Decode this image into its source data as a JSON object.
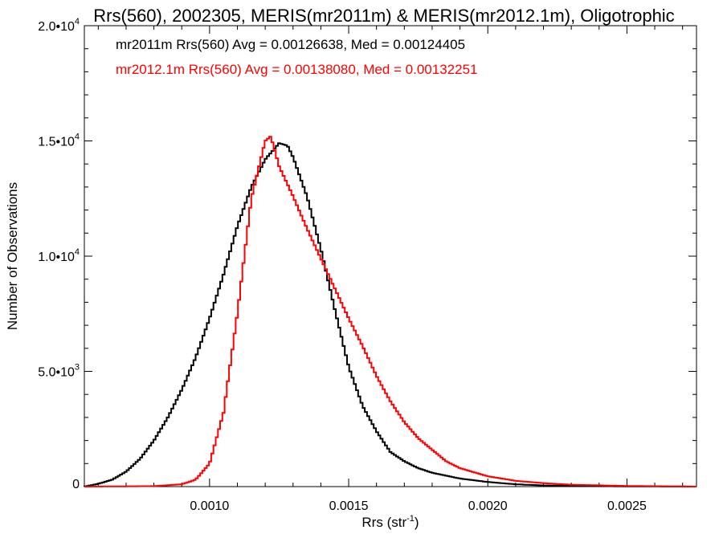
{
  "chart_data": {
    "type": "line",
    "title": "Rrs(560), 2002305, MERIS(mr2011m) & MERIS(mr2012.1m), Oligotrophic",
    "xlabel": "Rrs (str",
    "xlabel_sup": "-1",
    "xlabel_close": ")",
    "ylabel": "Number of Observations",
    "xlim": [
      0.00055,
      0.00275
    ],
    "ylim": [
      0,
      20000
    ],
    "x_ticks": [
      {
        "value": 0.001,
        "label": "0.0010"
      },
      {
        "value": 0.0015,
        "label": "0.0015"
      },
      {
        "value": 0.002,
        "label": "0.0020"
      },
      {
        "value": 0.0025,
        "label": "0.0025"
      }
    ],
    "y_ticks": [
      {
        "value": 0,
        "base": "0",
        "sup": ""
      },
      {
        "value": 5000,
        "base": "5.0•10",
        "sup": "3"
      },
      {
        "value": 10000,
        "base": "1.0•10",
        "sup": "4"
      },
      {
        "value": 15000,
        "base": "1.5•10",
        "sup": "4"
      },
      {
        "value": 20000,
        "base": "2.0•10",
        "sup": "4"
      }
    ],
    "annotations": [
      {
        "text": "mr2011m Rrs(560) Avg = 0.00126638, Med = 0.00124405",
        "color": "#000000"
      },
      {
        "text": "mr2012.1m Rrs(560) Avg = 0.00138080, Med = 0.00132251",
        "color": "#ff0000"
      }
    ],
    "series": [
      {
        "name": "mr2011m",
        "color": "#000000",
        "style": "step",
        "points": [
          [
            0.00055,
            0
          ],
          [
            0.0006,
            120
          ],
          [
            0.00065,
            300
          ],
          [
            0.0007,
            650
          ],
          [
            0.00075,
            1200
          ],
          [
            0.0008,
            2000
          ],
          [
            0.00085,
            3000
          ],
          [
            0.0009,
            4200
          ],
          [
            0.00095,
            5600
          ],
          [
            0.001,
            7300
          ],
          [
            0.00105,
            9200
          ],
          [
            0.0011,
            11300
          ],
          [
            0.00115,
            13000
          ],
          [
            0.0012,
            14200
          ],
          [
            0.00125,
            14900
          ],
          [
            0.00128,
            14800
          ],
          [
            0.0013,
            14300
          ],
          [
            0.00135,
            12600
          ],
          [
            0.0014,
            10300
          ],
          [
            0.00145,
            7700
          ],
          [
            0.0015,
            5200
          ],
          [
            0.00155,
            3500
          ],
          [
            0.0016,
            2400
          ],
          [
            0.00165,
            1500
          ],
          [
            0.0017,
            1100
          ],
          [
            0.00175,
            800
          ],
          [
            0.0018,
            600
          ],
          [
            0.0019,
            350
          ],
          [
            0.002,
            200
          ],
          [
            0.0021,
            100
          ],
          [
            0.0022,
            50
          ],
          [
            0.0025,
            10
          ],
          [
            0.00275,
            0
          ]
        ]
      },
      {
        "name": "mr2012.1m",
        "color": "#ff0000",
        "style": "step",
        "points": [
          [
            0.00055,
            0
          ],
          [
            0.0008,
            20
          ],
          [
            0.0009,
            100
          ],
          [
            0.00095,
            300
          ],
          [
            0.001,
            1000
          ],
          [
            0.00105,
            3200
          ],
          [
            0.0011,
            7500
          ],
          [
            0.00115,
            12500
          ],
          [
            0.0012,
            15000
          ],
          [
            0.00122,
            15200
          ],
          [
            0.00125,
            13900
          ],
          [
            0.0013,
            12600
          ],
          [
            0.00135,
            11200
          ],
          [
            0.0014,
            9900
          ],
          [
            0.00145,
            8600
          ],
          [
            0.0015,
            7300
          ],
          [
            0.00155,
            6100
          ],
          [
            0.0016,
            4800
          ],
          [
            0.00165,
            3700
          ],
          [
            0.0017,
            2800
          ],
          [
            0.00175,
            2100
          ],
          [
            0.0018,
            1600
          ],
          [
            0.00185,
            1100
          ],
          [
            0.0019,
            800
          ],
          [
            0.002,
            450
          ],
          [
            0.0021,
            250
          ],
          [
            0.0022,
            150
          ],
          [
            0.0023,
            80
          ],
          [
            0.0025,
            30
          ],
          [
            0.00275,
            0
          ]
        ]
      }
    ]
  }
}
